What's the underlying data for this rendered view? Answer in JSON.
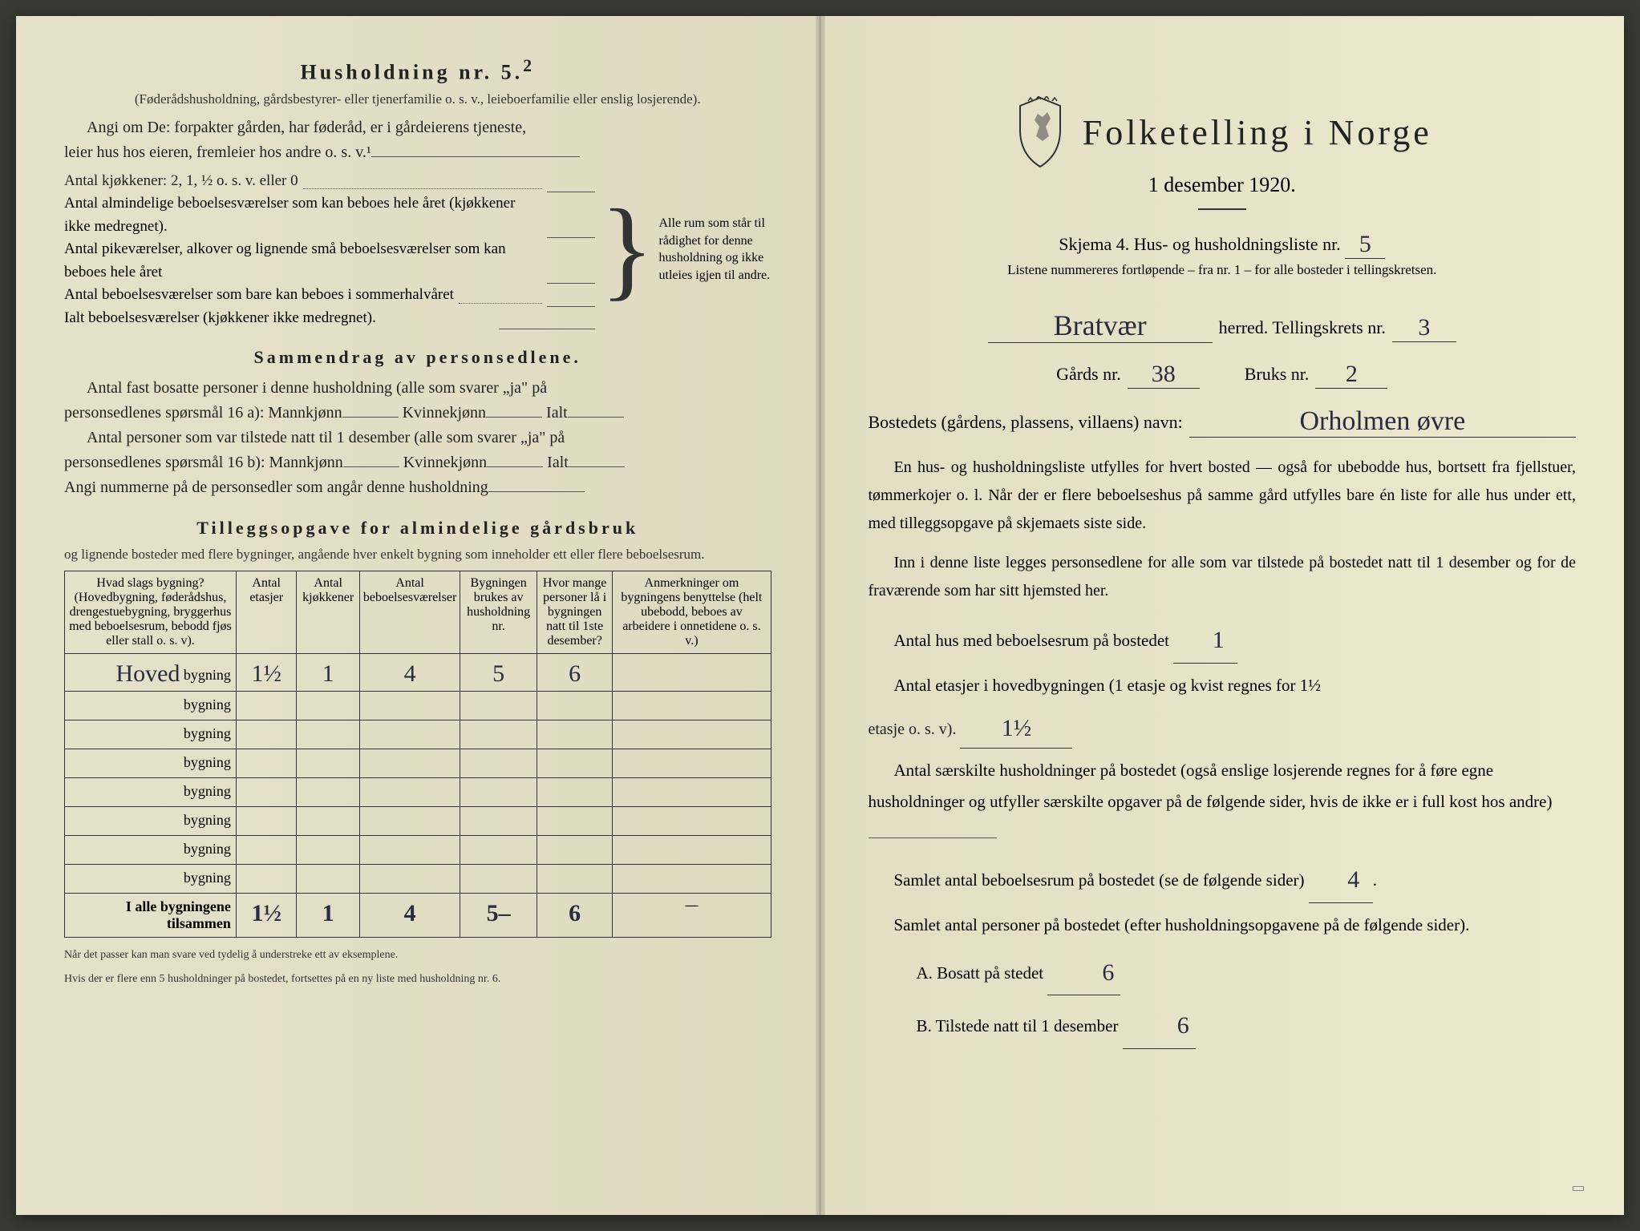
{
  "colors": {
    "paper": "#e8e4cc",
    "ink": "#222222",
    "hand": "#2a2a40",
    "rule": "#333333"
  },
  "left": {
    "heading": "Husholdning nr. 5.",
    "sup": "2",
    "subheading": "(Føderådshusholdning, gårdsbestyrer- eller tjenerfamilie o. s. v., leieboerfamilie eller enslig losjerende).",
    "para1a": "Angi om De:  forpakter gården, har føderåd, er i gårdeierens tjeneste,",
    "para1b": "leier hus hos eieren, fremleier hos andre o. s. v.¹",
    "kitchens_label": "Antal kjøkkener: 2, 1, ½ o. s. v. eller 0",
    "rooms": [
      "Antal almindelige beboelsesværelser som kan beboes hele året (kjøkkener ikke medregnet).",
      "Antal pikeværelser, alkover og lignende små beboelsesværelser som kan beboes hele året",
      "Antal beboelsesværelser som bare kan beboes i sommerhalvåret",
      "Ialt beboelsesværelser (kjøkkener ikke medregnet)."
    ],
    "brace_note": "Alle rum som står til rådighet for denne husholdning og ikke utleies igjen til andre.",
    "h3a": "Sammendrag av personsedlene.",
    "sum_lines": [
      "Antal fast bosatte personer i denne husholdning (alle som svarer „ja\" på",
      "personsedlenes spørsmål 16 a): Mannkjønn",
      "Kvinnekjønn",
      "Ialt",
      "Antal personer som var tilstede natt til 1 desember (alle som svarer „ja\" på",
      "personsedlenes spørsmål 16 b): Mannkjønn",
      "Kvinnekjønn",
      "Ialt",
      "Angi nummerne på de personsedler som angår denne husholdning"
    ],
    "h3b": "Tilleggsopgave for almindelige gårdsbruk",
    "tillegg_sub": "og lignende bosteder med flere bygninger, angående hver enkelt bygning som inneholder ett eller flere beboelsesrum.",
    "table": {
      "headers": [
        "Hvad slags bygning?\n(Hovedbygning, føderådshus, drengestue­bygning, bryggerhus med beboelsesrum, bebodd fjøs eller stall o. s. v).",
        "Antal etasjer",
        "Antal kjøkkener",
        "Antal beboelsesværelser",
        "Bygningen brukes av husholdning nr.",
        "Hvor mange personer lå i bygningen natt til 1ste desember?",
        "Anmerkninger om bygningens benyttelse (helt ubebodd, beboes av arbeidere i onnetidene o. s. v.)"
      ],
      "col_widths": [
        "26%",
        "9%",
        "9%",
        "10%",
        "11%",
        "11%",
        "24%"
      ],
      "row_label_prefix": "",
      "row_label_suffix": "bygning",
      "first_row_label": "Hoved",
      "rows": [
        {
          "etasjer": "1½",
          "kjokken": "1",
          "bebo": "4",
          "hush": "5",
          "pers": "6",
          "anm": ""
        },
        {
          "etasjer": "",
          "kjokken": "",
          "bebo": "",
          "hush": "",
          "pers": "",
          "anm": ""
        },
        {
          "etasjer": "",
          "kjokken": "",
          "bebo": "",
          "hush": "",
          "pers": "",
          "anm": ""
        },
        {
          "etasjer": "",
          "kjokken": "",
          "bebo": "",
          "hush": "",
          "pers": "",
          "anm": ""
        },
        {
          "etasjer": "",
          "kjokken": "",
          "bebo": "",
          "hush": "",
          "pers": "",
          "anm": ""
        },
        {
          "etasjer": "",
          "kjokken": "",
          "bebo": "",
          "hush": "",
          "pers": "",
          "anm": ""
        },
        {
          "etasjer": "",
          "kjokken": "",
          "bebo": "",
          "hush": "",
          "pers": "",
          "anm": ""
        },
        {
          "etasjer": "",
          "kjokken": "",
          "bebo": "",
          "hush": "",
          "pers": "",
          "anm": ""
        }
      ],
      "sum_label": "I alle bygningene tilsammen",
      "sum": {
        "etasjer": "1½",
        "kjokken": "1",
        "bebo": "4",
        "hush": "5–",
        "pers": "6",
        "anm": "—"
      }
    },
    "footnote1": "Når det passer kan man svare ved tydelig å understreke ett av eksemplene.",
    "footnote2": "Hvis der er flere enn 5 husholdninger på bostedet, fortsettes på en ny liste med husholdning nr. 6."
  },
  "right": {
    "title": "Folketelling i Norge",
    "subtitle": "1 desember 1920.",
    "skjema_pre": "Skjema 4.  Hus- og husholdningsliste nr.",
    "skjema_nr": "5",
    "listnote": "Listene nummereres fortløpende – fra nr. 1 – for alle bosteder i tellingskretsen.",
    "herred_value": "Bratvær",
    "herred_label": "herred.   Tellingskrets nr.",
    "krets_nr": "3",
    "gards_label": "Gårds nr.",
    "gards_nr": "38",
    "bruks_label": "Bruks nr.",
    "bruks_nr": "2",
    "bosted_label": "Bostedets (gårdens, plassens, villaens) navn:",
    "bosted_value": "Orholmen øvre",
    "para1": "En hus- og husholdningsliste utfylles for hvert bosted — også for ubebodde hus, bortsett fra fjellstuer, tømmerkojer o. l.  Når der er flere beboelseshus på samme gård utfylles bare én liste for alle hus under ett, med tilleggsopgave på skjemaets siste side.",
    "para2": "Inn i denne liste legges personsedlene for alle som var tilstede på bostedet natt til 1 desember og for de fraværende som har sitt hjemsted her.",
    "q1_label": "Antal hus med beboelsesrum på bostedet",
    "q1_value": "1",
    "q2_label_a": "Antal etasjer i hovedbygningen (1 etasje og kvist regnes for 1½",
    "q2_label_b": "etasje o. s. v).",
    "q2_value": "1½",
    "q3": "Antal særskilte husholdninger på bostedet (også enslige losjerende regnes for å føre egne husholdninger og utfyller særskilte opgaver på de følgende sider, hvis de ikke er i full kost hos andre)",
    "q4_label": "Samlet antal beboelsesrum på bostedet (se de følgende sider)",
    "q4_value": "4",
    "q5": "Samlet antal personer på bostedet (efter husholdningsopgavene på de følgende sider).",
    "q5a_label": "A.  Bosatt på stedet",
    "q5a_value": "6",
    "q5b_label": "B.  Tilstede natt til 1 desember",
    "q5b_value": "6",
    "stamp": ""
  }
}
